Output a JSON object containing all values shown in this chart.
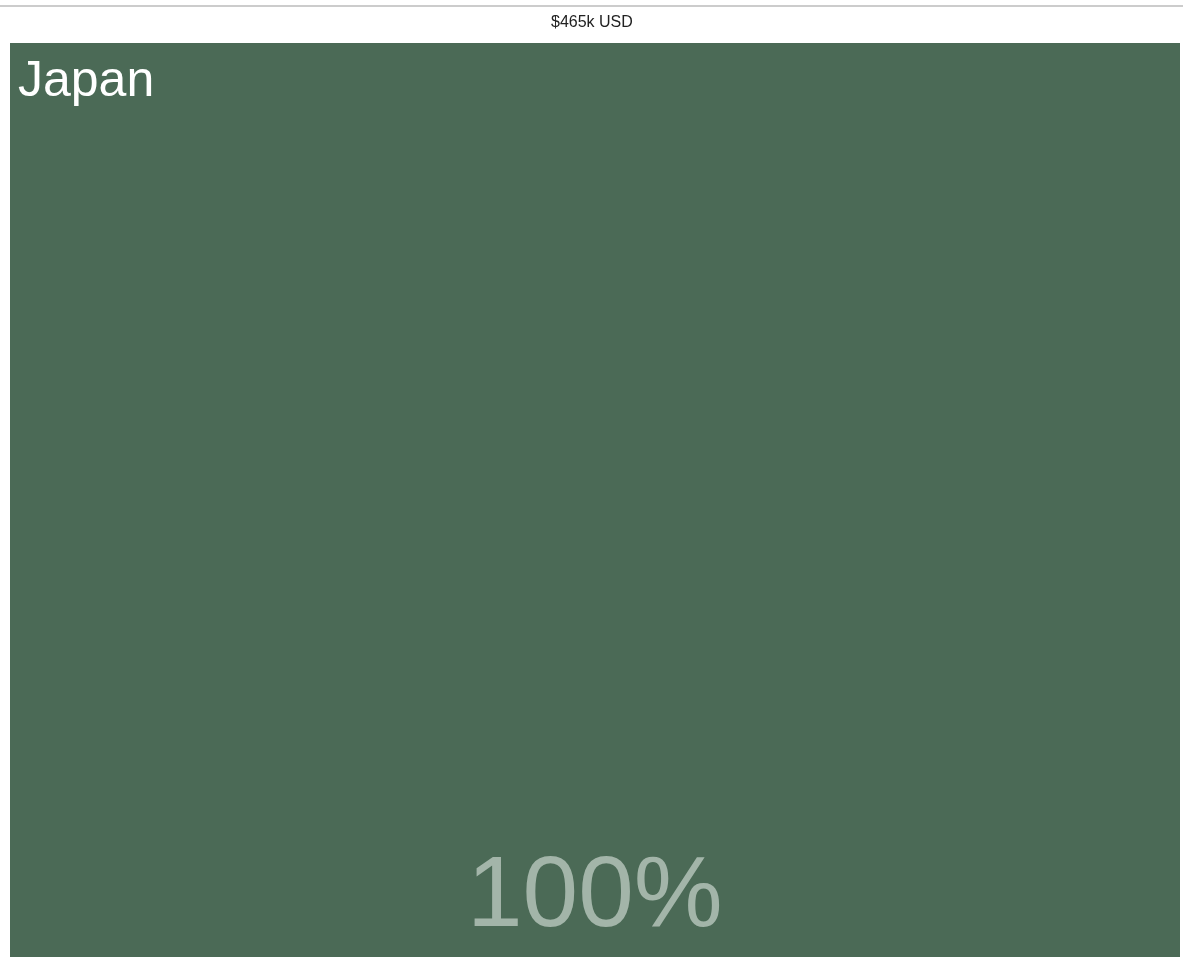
{
  "chart_data": {
    "type": "other",
    "title": "$465k USD",
    "categories": [
      "Japan"
    ],
    "values": [
      100
    ],
    "value_labels": [
      "100%"
    ],
    "colors": [
      "#4b6a56"
    ]
  }
}
